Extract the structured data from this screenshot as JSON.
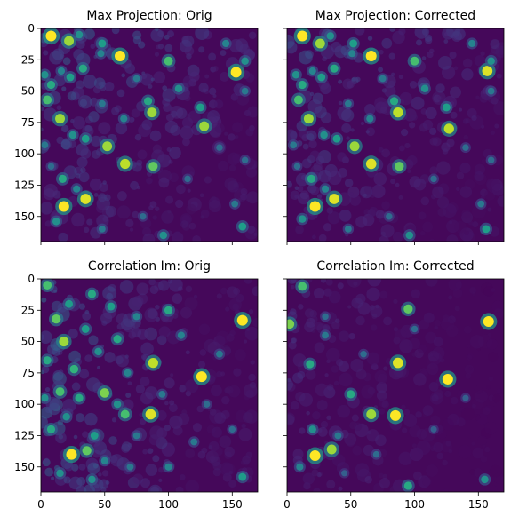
{
  "figure": {
    "layout": "2x2 grid",
    "sharex": true,
    "sharey": true
  },
  "chart_data": [
    {
      "type": "heatmap",
      "title": "Max Projection: Orig",
      "colormap": "viridis",
      "xlim": [
        0,
        170
      ],
      "ylim": [
        170,
        0
      ],
      "xticks": [],
      "yticks": [
        "0",
        "25",
        "50",
        "75",
        "100",
        "125",
        "150"
      ],
      "spots": [
        [
          8,
          6,
          1.0
        ],
        [
          22,
          10,
          0.85
        ],
        [
          30,
          5,
          0.5
        ],
        [
          48,
          12,
          0.55
        ],
        [
          62,
          22,
          1.0
        ],
        [
          33,
          32,
          0.6
        ],
        [
          47,
          20,
          0.45
        ],
        [
          23,
          39,
          0.55
        ],
        [
          8,
          45,
          0.6
        ],
        [
          5,
          57,
          0.7
        ],
        [
          16,
          34,
          0.45
        ],
        [
          3,
          37,
          0.5
        ],
        [
          15,
          72,
          0.85
        ],
        [
          25,
          85,
          0.5
        ],
        [
          35,
          88,
          0.55
        ],
        [
          52,
          94,
          0.85
        ],
        [
          66,
          108,
          0.9
        ],
        [
          88,
          110,
          0.75
        ],
        [
          87,
          67,
          0.85
        ],
        [
          84,
          58,
          0.6
        ],
        [
          100,
          26,
          0.7
        ],
        [
          108,
          48,
          0.5
        ],
        [
          125,
          63,
          0.55
        ],
        [
          128,
          78,
          0.85
        ],
        [
          153,
          35,
          1.0
        ],
        [
          145,
          12,
          0.45
        ],
        [
          160,
          26,
          0.5
        ],
        [
          160,
          50,
          0.4
        ],
        [
          18,
          142,
          1.0
        ],
        [
          35,
          136,
          0.95
        ],
        [
          17,
          120,
          0.6
        ],
        [
          12,
          154,
          0.5
        ],
        [
          28,
          128,
          0.45
        ],
        [
          158,
          158,
          0.55
        ],
        [
          152,
          140,
          0.4
        ],
        [
          96,
          165,
          0.5
        ],
        [
          65,
          72,
          0.45
        ],
        [
          48,
          60,
          0.4
        ],
        [
          75,
          40,
          0.4
        ],
        [
          140,
          95,
          0.35
        ],
        [
          115,
          120,
          0.35
        ],
        [
          160,
          105,
          0.35
        ],
        [
          48,
          160,
          0.4
        ],
        [
          80,
          150,
          0.35
        ],
        [
          3,
          93,
          0.4
        ],
        [
          8,
          110,
          0.35
        ]
      ],
      "noise_level": 0.35,
      "noise_falloff": "decreases toward lower-right"
    },
    {
      "type": "heatmap",
      "title": "Max Projection: Corrected",
      "colormap": "viridis",
      "xlim": [
        0,
        170
      ],
      "ylim": [
        170,
        0
      ],
      "xticks": [],
      "yticks": [],
      "spots": [
        [
          12,
          6,
          1.0
        ],
        [
          26,
          12,
          0.85
        ],
        [
          34,
          6,
          0.5
        ],
        [
          52,
          12,
          0.55
        ],
        [
          66,
          22,
          1.0
        ],
        [
          37,
          32,
          0.6
        ],
        [
          51,
          20,
          0.45
        ],
        [
          27,
          39,
          0.55
        ],
        [
          12,
          45,
          0.6
        ],
        [
          9,
          57,
          0.7
        ],
        [
          20,
          34,
          0.45
        ],
        [
          7,
          37,
          0.5
        ],
        [
          17,
          72,
          0.85
        ],
        [
          29,
          85,
          0.5
        ],
        [
          39,
          88,
          0.55
        ],
        [
          53,
          94,
          0.85
        ],
        [
          66,
          108,
          0.95
        ],
        [
          88,
          110,
          0.75
        ],
        [
          87,
          67,
          0.9
        ],
        [
          84,
          58,
          0.6
        ],
        [
          100,
          26,
          0.7
        ],
        [
          108,
          48,
          0.5
        ],
        [
          125,
          63,
          0.55
        ],
        [
          127,
          80,
          0.9
        ],
        [
          157,
          34,
          0.95
        ],
        [
          145,
          12,
          0.45
        ],
        [
          160,
          26,
          0.5
        ],
        [
          160,
          50,
          0.4
        ],
        [
          22,
          142,
          1.0
        ],
        [
          37,
          136,
          0.95
        ],
        [
          19,
          120,
          0.6
        ],
        [
          12,
          152,
          0.5
        ],
        [
          30,
          128,
          0.45
        ],
        [
          156,
          160,
          0.55
        ],
        [
          152,
          140,
          0.4
        ],
        [
          96,
          165,
          0.5
        ],
        [
          65,
          72,
          0.45
        ],
        [
          48,
          60,
          0.4
        ],
        [
          75,
          40,
          0.4
        ],
        [
          140,
          95,
          0.35
        ],
        [
          115,
          120,
          0.35
        ],
        [
          160,
          105,
          0.35
        ],
        [
          48,
          160,
          0.4
        ],
        [
          80,
          150,
          0.35
        ],
        [
          5,
          93,
          0.4
        ],
        [
          8,
          110,
          0.35
        ]
      ],
      "noise_level": 0.3,
      "noise_falloff": "decreases toward lower-right"
    },
    {
      "type": "heatmap",
      "title": "Correlation Im: Orig",
      "colormap": "viridis",
      "xlim": [
        0,
        170
      ],
      "ylim": [
        170,
        0
      ],
      "xticks": [
        "0",
        "50",
        "100",
        "150"
      ],
      "yticks": [
        "0",
        "25",
        "50",
        "75",
        "100",
        "125",
        "150"
      ],
      "spots": [
        [
          158,
          33,
          1.0
        ],
        [
          126,
          78,
          1.0
        ],
        [
          88,
          67,
          0.9
        ],
        [
          86,
          108,
          0.95
        ],
        [
          66,
          108,
          0.7
        ],
        [
          24,
          140,
          1.0
        ],
        [
          36,
          137,
          0.75
        ],
        [
          50,
          91,
          0.8
        ],
        [
          18,
          50,
          0.85
        ],
        [
          5,
          5,
          0.7
        ],
        [
          12,
          32,
          0.75
        ],
        [
          26,
          72,
          0.65
        ],
        [
          40,
          12,
          0.6
        ],
        [
          55,
          22,
          0.55
        ],
        [
          60,
          48,
          0.6
        ],
        [
          35,
          40,
          0.55
        ],
        [
          45,
          58,
          0.5
        ],
        [
          15,
          90,
          0.7
        ],
        [
          30,
          95,
          0.6
        ],
        [
          8,
          120,
          0.6
        ],
        [
          20,
          110,
          0.5
        ],
        [
          42,
          125,
          0.55
        ],
        [
          60,
          100,
          0.5
        ],
        [
          100,
          25,
          0.6
        ],
        [
          110,
          45,
          0.45
        ],
        [
          75,
          30,
          0.45
        ],
        [
          5,
          65,
          0.6
        ],
        [
          22,
          20,
          0.55
        ],
        [
          140,
          60,
          0.4
        ],
        [
          158,
          158,
          0.55
        ],
        [
          120,
          130,
          0.4
        ],
        [
          100,
          150,
          0.45
        ],
        [
          70,
          150,
          0.4
        ],
        [
          40,
          160,
          0.5
        ],
        [
          15,
          155,
          0.5
        ],
        [
          68,
          75,
          0.45
        ],
        [
          95,
          92,
          0.4
        ],
        [
          130,
          100,
          0.35
        ],
        [
          150,
          120,
          0.35
        ],
        [
          75,
          125,
          0.4
        ],
        [
          50,
          145,
          0.45
        ],
        [
          3,
          95,
          0.5
        ]
      ],
      "noise_level": 0.35,
      "noise_falloff": "left half busy, right half sparse"
    },
    {
      "type": "heatmap",
      "title": "Correlation Im: Corrected",
      "colormap": "viridis",
      "xlim": [
        0,
        170
      ],
      "ylim": [
        170,
        0
      ],
      "xticks": [
        "0",
        "50",
        "100",
        "150"
      ],
      "yticks": [],
      "spots": [
        [
          158,
          34,
          1.0
        ],
        [
          126,
          80,
          1.0
        ],
        [
          87,
          67,
          0.95
        ],
        [
          85,
          109,
          1.0
        ],
        [
          66,
          108,
          0.85
        ],
        [
          22,
          141,
          1.0
        ],
        [
          35,
          136,
          0.85
        ],
        [
          50,
          92,
          0.6
        ],
        [
          18,
          68,
          0.6
        ],
        [
          12,
          6,
          0.7
        ],
        [
          2,
          36,
          0.8
        ],
        [
          95,
          24,
          0.75
        ],
        [
          20,
          120,
          0.5
        ],
        [
          10,
          150,
          0.45
        ],
        [
          40,
          125,
          0.4
        ],
        [
          95,
          165,
          0.6
        ],
        [
          155,
          160,
          0.5
        ],
        [
          30,
          45,
          0.4
        ],
        [
          60,
          60,
          0.35
        ],
        [
          100,
          40,
          0.35
        ],
        [
          115,
          120,
          0.3
        ],
        [
          140,
          95,
          0.3
        ],
        [
          70,
          140,
          0.35
        ],
        [
          45,
          155,
          0.3
        ],
        [
          30,
          30,
          0.35
        ]
      ],
      "noise_level": 0.15,
      "noise_falloff": "left side brighter"
    }
  ]
}
